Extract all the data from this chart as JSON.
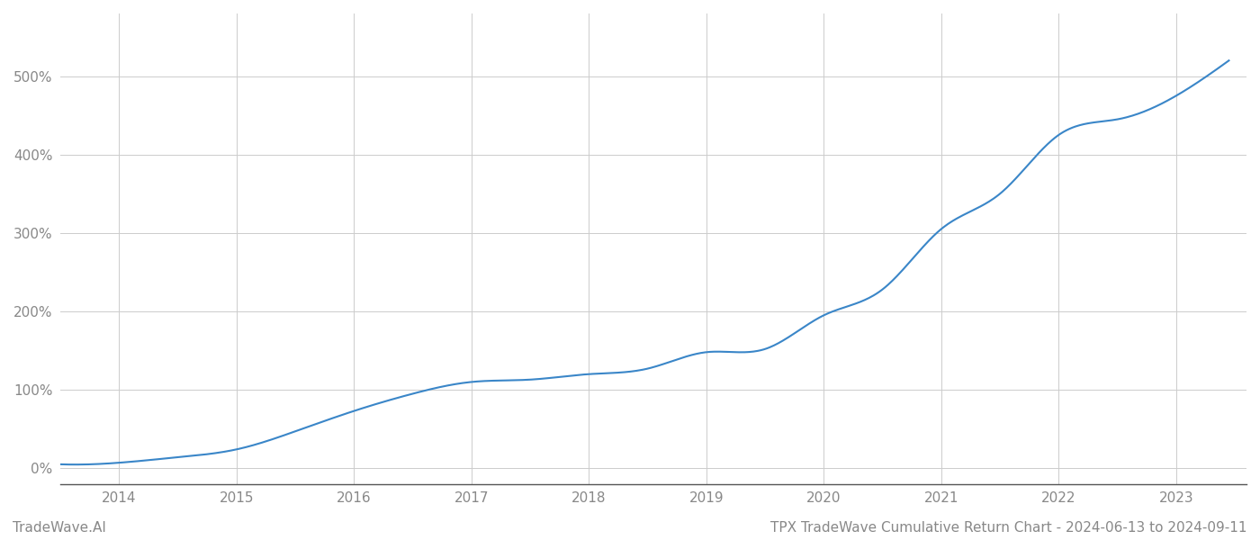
{
  "title": "TPX TradeWave Cumulative Return Chart - 2024-06-13 to 2024-09-11",
  "watermark": "TradeWave.AI",
  "line_color": "#3a86c8",
  "background_color": "#ffffff",
  "grid_color": "#cccccc",
  "years": [
    2014,
    2015,
    2016,
    2017,
    2018,
    2019,
    2020,
    2021,
    2022,
    2023
  ],
  "key_x": [
    2013.5,
    2014.0,
    2014.5,
    2015.0,
    2015.5,
    2016.0,
    2016.5,
    2017.0,
    2017.5,
    2018.0,
    2018.5,
    2019.0,
    2019.5,
    2020.0,
    2020.5,
    2021.0,
    2021.5,
    2022.0,
    2022.5,
    2023.0,
    2023.45
  ],
  "key_y": [
    5,
    7,
    14,
    24,
    47,
    73,
    95,
    110,
    113,
    120,
    127,
    148,
    152,
    195,
    228,
    305,
    350,
    425,
    445,
    475,
    520
  ],
  "yticks": [
    0,
    100,
    200,
    300,
    400,
    500
  ],
  "ylim": [
    -20,
    580
  ],
  "xlim": [
    2013.5,
    2023.6
  ],
  "title_fontsize": 11,
  "watermark_fontsize": 11,
  "tick_fontsize": 11,
  "tick_color": "#888888",
  "line_width": 1.5
}
